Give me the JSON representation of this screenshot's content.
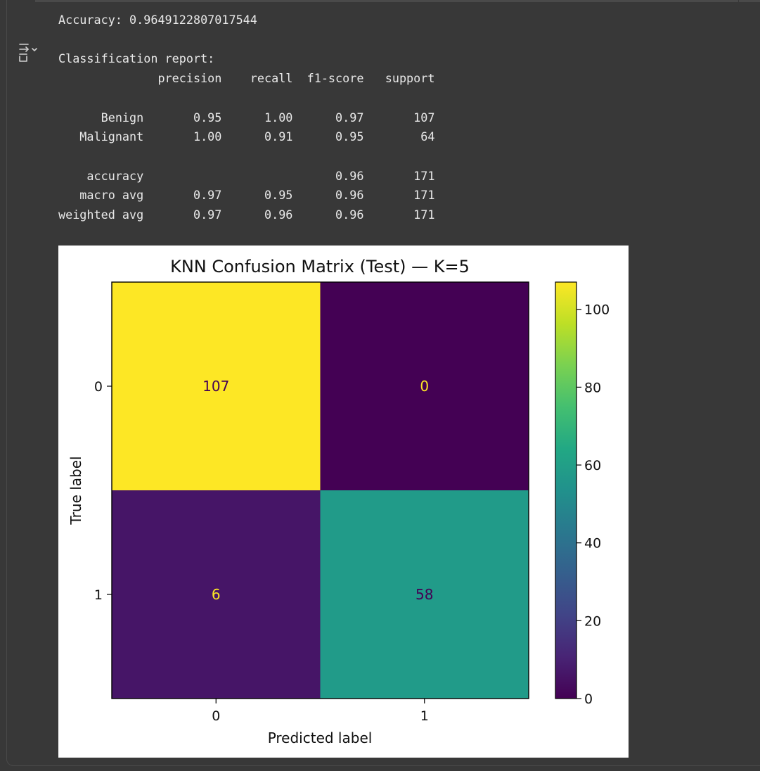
{
  "output": {
    "toggle_icon": "output-collapse-icon",
    "accuracy_label": "Accuracy:",
    "accuracy_value": "0.9649122807017544",
    "report_title": "Classification report:",
    "report": {
      "headers": [
        "precision",
        "recall",
        "f1-score",
        "support"
      ],
      "rows": [
        {
          "label": "Benign",
          "precision": "0.95",
          "recall": "1.00",
          "f1": "0.97",
          "support": "107"
        },
        {
          "label": "Malignant",
          "precision": "1.00",
          "recall": "0.91",
          "f1": "0.95",
          "support": "64"
        }
      ],
      "summary": [
        {
          "label": "accuracy",
          "precision": "",
          "recall": "",
          "f1": "0.96",
          "support": "171"
        },
        {
          "label": "macro avg",
          "precision": "0.97",
          "recall": "0.95",
          "f1": "0.96",
          "support": "171"
        },
        {
          "label": "weighted avg",
          "precision": "0.97",
          "recall": "0.96",
          "f1": "0.96",
          "support": "171"
        }
      ]
    }
  },
  "chart_data": {
    "type": "heatmap",
    "title": "KNN Confusion Matrix (Test) — K=5",
    "xlabel": "Predicted label",
    "ylabel": "True label",
    "x_categories": [
      "0",
      "1"
    ],
    "y_categories": [
      "0",
      "1"
    ],
    "matrix": [
      [
        107,
        0
      ],
      [
        6,
        58
      ]
    ],
    "colormap": "viridis",
    "colorbar": {
      "min": 0,
      "max": 107,
      "ticks": [
        0,
        20,
        40,
        60,
        80,
        100
      ]
    }
  }
}
